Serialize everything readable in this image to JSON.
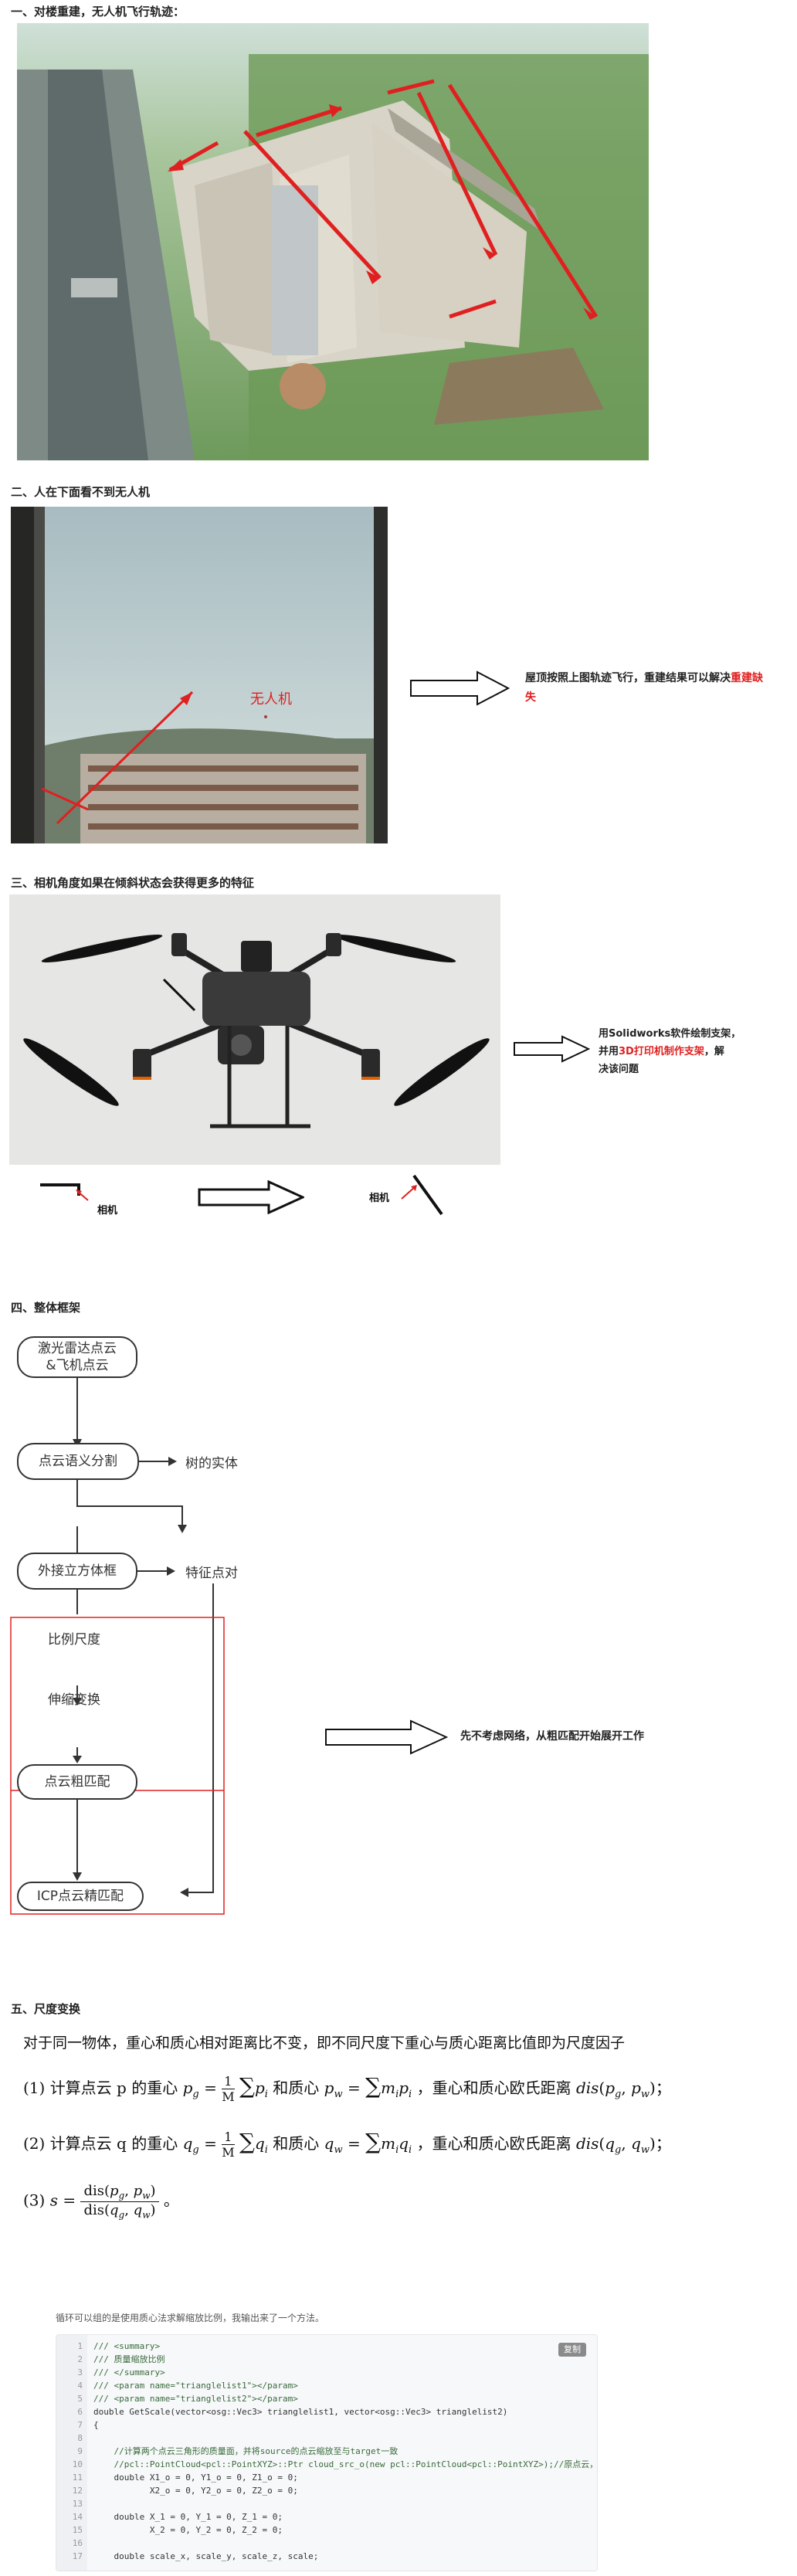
{
  "sections": {
    "s1_title": "一、对楼重建，无人机飞行轨迹：",
    "s2_title": "二、人在下面看不到无人机",
    "s3_title": "三、相机角度如果在倾斜状态会获得更多的特征",
    "s4_title": "四、整体框架",
    "s5_title": "五、尺度变换"
  },
  "s2": {
    "drone_label": "无人机",
    "note_part1": "屋顶按照上图轨迹飞行，重建结果可以解决",
    "note_red": "重建缺失"
  },
  "s3": {
    "note_line1": "用Solidworks软件绘制支架，",
    "note_line2_pre": "并用",
    "note_line2_red": "3D打印机制作支架",
    "note_line2_post": "，解",
    "note_line3": "决该问题",
    "camera_label_left": "相机",
    "camera_label_right": "相机"
  },
  "s4": {
    "box_lidar": "激光雷达点云\n&飞机点云",
    "box_seg": "点云语义分割",
    "text_tree": "树的实体",
    "box_bbox": "外接立方体框",
    "text_feature": "特征点对",
    "text_ratio": "比例尺度",
    "text_scale": "伸缩变换",
    "box_coarse": "点云粗匹配",
    "box_icp": "ICP点云精匹配",
    "note": "先不考虑网络，从粗匹配开始展开工作"
  },
  "s5": {
    "intro": "对于同一物体，重心和质心相对距离比不变，即不同尺度下重心与质心距离比值即为尺度因子",
    "f1_lead": "(1) 计算点云 p 的重心",
    "f1_mid": "和质心",
    "f1_tail": "，重心和质心欧氏距离",
    "f2_lead": "(2) 计算点云 q 的重心",
    "f2_mid": "和质心",
    "f2_tail": "，重心和质心欧氏距离",
    "f3_lead": "(3)",
    "caption": "循环可以组的是使用质心法求解缩放比例，我输出来了一个方法。",
    "copy_label": "复制",
    "code_lines": [
      "/// <summary>",
      "/// 质量缩放比例",
      "/// </summary>",
      "/// <param name=\"trianglelist1\"></param>",
      "/// <param name=\"trianglelist2\"></param>",
      "double GetScale(vector<osg::Vec3> trianglelist1, vector<osg::Vec3> trianglelist2)",
      "{",
      "",
      "    //计算两个点云三角形的质量面，并将source的点云缩放至与target一致",
      "    //pcl::PointCloud<pcl::PointXYZ>::Ptr cloud_src_o(new pcl::PointCloud<pcl::PointXYZ>);//原点云，待配准",
      "    double X1_o = 0, Y1_o = 0, Z1_o = 0;",
      "           X2_o = 0, Y2_o = 0, Z2_o = 0;",
      "",
      "    double X_1 = 0, Y_1 = 0, Z_1 = 0;",
      "           X_2 = 0, Y_2 = 0, Z_2 = 0;",
      "",
      "    double scale_x, scale_y, scale_z, scale;"
    ]
  },
  "colors": {
    "accent_red": "#e02020",
    "frame_red": "#e02020"
  }
}
